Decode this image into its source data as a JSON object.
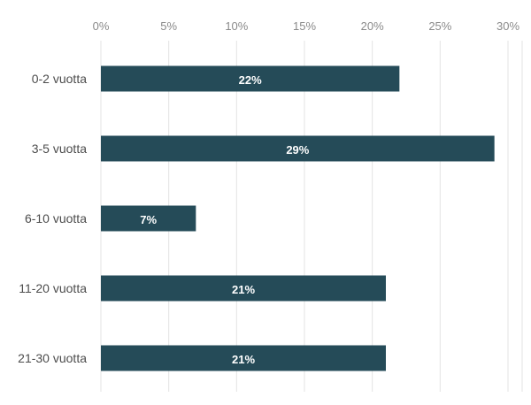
{
  "chart_data": {
    "type": "bar",
    "orientation": "horizontal",
    "categories": [
      "0-2 vuotta",
      "3-5 vuotta",
      "6-10 vuotta",
      "11-20 vuotta",
      "21-30 vuotta"
    ],
    "values": [
      22,
      29,
      7,
      21,
      21
    ],
    "data_labels": [
      "22%",
      "29%",
      "7%",
      "21%",
      "21%"
    ],
    "x_ticks": [
      0,
      5,
      10,
      15,
      20,
      25,
      30
    ],
    "x_tick_labels": [
      "0%",
      "5%",
      "10%",
      "15%",
      "20%",
      "25%",
      "30%"
    ],
    "xlim": [
      0,
      30
    ],
    "x_axis_position": "top",
    "grid": true,
    "bar_color": "#254b58",
    "title": "",
    "xlabel": "",
    "ylabel": ""
  }
}
